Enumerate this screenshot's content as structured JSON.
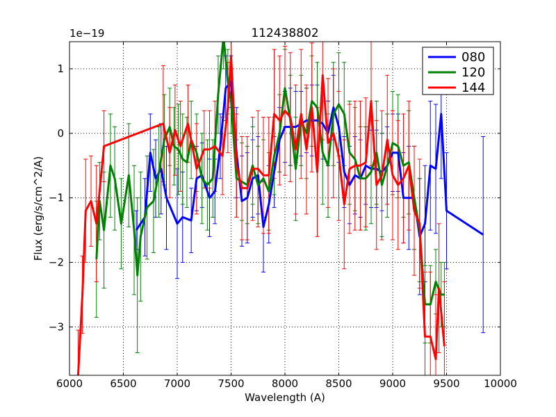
{
  "chart_data": {
    "type": "line",
    "title": "112438802",
    "xlabel": "Wavelength (A)",
    "ylabel": "Flux (erg/s/cm^2/A)",
    "y_offset_label": "1e−19",
    "xlim": [
      6000,
      10000
    ],
    "ylim": [
      -3.75,
      1.42
    ],
    "x_ticks": [
      6000,
      6500,
      7000,
      7500,
      8000,
      8500,
      9000,
      9500,
      10000
    ],
    "x_tick_labels": [
      "6000",
      "6500",
      "7000",
      "7500",
      "8000",
      "8500",
      "9000",
      "9500",
      "10000"
    ],
    "y_ticks": [
      -3,
      -2,
      -1,
      0,
      1
    ],
    "y_tick_labels": [
      "−3",
      "−2",
      "−1",
      "0",
      "1"
    ],
    "grid": true,
    "legend_position": "top-right",
    "error_bars": true,
    "series": [
      {
        "name": "080",
        "color": "#0000ff",
        "x": [
          6620,
          6700,
          6750,
          6800,
          6850,
          6900,
          7000,
          7050,
          7130,
          7180,
          7230,
          7300,
          7350,
          7400,
          7450,
          7500,
          7550,
          7600,
          7650,
          7700,
          7750,
          7800,
          7850,
          7900,
          7950,
          8000,
          8050,
          8100,
          8150,
          8200,
          8250,
          8300,
          8350,
          8400,
          8450,
          8500,
          8550,
          8600,
          8650,
          8700,
          8750,
          8800,
          8850,
          8900,
          8950,
          9000,
          9050,
          9100,
          9150,
          9200,
          9250,
          9300,
          9350,
          9400,
          9450,
          9500,
          9840
        ],
        "y": [
          -1.5,
          -1.3,
          -0.3,
          -0.7,
          -0.55,
          -1.0,
          -1.4,
          -1.3,
          -1.35,
          -0.7,
          -0.65,
          -1.0,
          -0.9,
          -0.2,
          0.7,
          0.8,
          -0.3,
          -1.05,
          -1.0,
          -0.7,
          -0.65,
          -1.45,
          -1.1,
          -0.6,
          -0.1,
          0.1,
          0.1,
          0.1,
          0.15,
          0.2,
          0.2,
          0.2,
          0.15,
          0.0,
          0.4,
          0.1,
          -0.6,
          -0.8,
          -0.65,
          -0.7,
          -0.5,
          -0.55,
          -0.55,
          -0.6,
          -0.5,
          -0.3,
          -0.3,
          -1.0,
          -1.0,
          -1.0,
          -1.6,
          -1.4,
          -0.5,
          -0.55,
          0.3,
          -1.2,
          -1.57
        ],
        "err": [
          0.3,
          0.6,
          0.6,
          0.6,
          0.7,
          0.8,
          0.85,
          0.7,
          0.5,
          0.5,
          0.5,
          0.6,
          0.5,
          0.5,
          0.5,
          0.4,
          0.7,
          0.7,
          0.7,
          0.6,
          0.6,
          0.7,
          0.6,
          0.55,
          0.5,
          0.55,
          0.6,
          0.55,
          0.5,
          0.5,
          0.55,
          0.55,
          0.55,
          0.5,
          0.5,
          0.55,
          0.55,
          0.6,
          0.6,
          0.6,
          0.6,
          0.6,
          0.6,
          0.6,
          0.6,
          0.6,
          0.6,
          0.7,
          0.8,
          0.8,
          0.9,
          0.9,
          1.0,
          1.0,
          1.0,
          0.9,
          1.52
        ]
      },
      {
        "name": "120",
        "color": "#008000",
        "x": [
          6250,
          6280,
          6320,
          6380,
          6420,
          6480,
          6550,
          6600,
          6630,
          6660,
          6720,
          6780,
          6830,
          6880,
          6930,
          6970,
          7010,
          7050,
          7090,
          7130,
          7180,
          7230,
          7280,
          7330,
          7380,
          7430,
          7470,
          7500,
          7550,
          7600,
          7650,
          7700,
          7750,
          7800,
          7850,
          7900,
          7950,
          8000,
          8050,
          8100,
          8150,
          8200,
          8250,
          8300,
          8350,
          8400,
          8450,
          8500,
          8550,
          8600,
          8650,
          8700,
          8750,
          8800,
          8850,
          8900,
          8950,
          9000,
          9050,
          9100,
          9150,
          9200,
          9250,
          9300,
          9350,
          9400,
          9450,
          9480
        ],
        "y": [
          -1.95,
          -1.05,
          -1.5,
          -0.5,
          -0.7,
          -1.4,
          -0.65,
          -1.5,
          -2.2,
          -1.6,
          -1.15,
          -1.05,
          -0.6,
          -0.1,
          0.1,
          -0.2,
          -0.25,
          -0.4,
          -0.45,
          -0.1,
          -0.3,
          -0.7,
          -0.8,
          -0.7,
          0.6,
          1.5,
          0.8,
          0.5,
          -0.7,
          -0.75,
          -0.8,
          -0.5,
          -0.8,
          -0.7,
          -0.9,
          -0.35,
          0.0,
          0.7,
          0.2,
          -0.55,
          0.2,
          0.0,
          0.5,
          0.4,
          -0.3,
          -0.5,
          0.3,
          0.45,
          0.3,
          -0.3,
          -0.4,
          -0.7,
          -0.7,
          -0.6,
          -0.3,
          -0.8,
          -0.5,
          -0.15,
          -0.2,
          -0.5,
          -0.45,
          -1.0,
          -1.5,
          -2.65,
          -2.65,
          -2.3,
          -2.5,
          -2.5
        ],
        "err": [
          0.9,
          0.6,
          0.9,
          0.8,
          0.8,
          0.7,
          0.8,
          1.0,
          1.2,
          1.0,
          0.8,
          0.8,
          0.7,
          0.7,
          0.6,
          0.6,
          0.7,
          0.7,
          0.7,
          0.6,
          0.6,
          0.7,
          0.7,
          0.6,
          0.6,
          0.5,
          0.5,
          0.5,
          0.6,
          0.6,
          0.6,
          0.6,
          0.6,
          0.6,
          0.6,
          0.6,
          0.6,
          0.6,
          0.7,
          0.8,
          0.7,
          0.7,
          0.7,
          0.7,
          0.8,
          0.8,
          0.8,
          0.8,
          0.8,
          0.8,
          0.8,
          0.8,
          0.8,
          0.8,
          0.8,
          0.8,
          0.8,
          0.8,
          0.8,
          0.8,
          0.8,
          0.8,
          0.8,
          0.6,
          0.6,
          0.5,
          0.5,
          0.5
        ]
      },
      {
        "name": "144",
        "color": "#ff0000",
        "x": [
          6080,
          6120,
          6150,
          6200,
          6250,
          6320,
          6870,
          6930,
          6980,
          7030,
          7100,
          7180,
          7250,
          7300,
          7350,
          7420,
          7470,
          7500,
          7550,
          7600,
          7650,
          7700,
          7750,
          7800,
          7850,
          7900,
          7950,
          8000,
          8050,
          8100,
          8150,
          8200,
          8250,
          8300,
          8350,
          8400,
          8450,
          8500,
          8550,
          8600,
          8650,
          8700,
          8750,
          8800,
          8850,
          8900,
          8950,
          9000,
          9050,
          9100,
          9150,
          9200,
          9250,
          9300,
          9350,
          9400,
          9430,
          9480
        ],
        "y": [
          -3.75,
          -2.5,
          -1.2,
          -1.05,
          -1.4,
          -0.2,
          0.15,
          -0.3,
          0.05,
          -0.2,
          0.15,
          -0.55,
          -0.25,
          -0.25,
          -0.2,
          -0.35,
          0.4,
          1.2,
          -0.5,
          -0.85,
          -0.85,
          -0.55,
          -0.55,
          -0.65,
          -0.65,
          0.3,
          0.2,
          0.35,
          0.25,
          -0.25,
          0.3,
          -0.25,
          0.4,
          -0.6,
          0.9,
          -0.15,
          0.0,
          -0.35,
          -1.1,
          -0.55,
          -0.5,
          -0.5,
          -0.45,
          0.5,
          -0.8,
          -0.65,
          -0.1,
          -0.65,
          -0.8,
          -0.7,
          -0.5,
          -1.2,
          -1.4,
          -3.15,
          -3.15,
          -3.5,
          -2.4,
          -3.3
        ],
        "err": [
          0.7,
          0.6,
          0.8,
          0.7,
          0.9,
          0.55,
          0.9,
          0.7,
          0.7,
          0.7,
          0.6,
          0.7,
          0.6,
          0.6,
          0.7,
          0.6,
          0.7,
          0.7,
          0.8,
          0.8,
          0.8,
          0.8,
          0.9,
          0.9,
          0.9,
          1.0,
          1.0,
          1.0,
          1.0,
          1.0,
          1.0,
          1.0,
          1.0,
          1.0,
          1.0,
          1.0,
          1.0,
          1.0,
          1.0,
          1.0,
          1.0,
          1.0,
          1.0,
          1.0,
          1.0,
          1.0,
          1.0,
          1.0,
          1.0,
          1.0,
          1.0,
          1.0,
          1.0,
          1.0,
          1.0,
          1.0,
          1.0,
          1.0
        ]
      }
    ]
  }
}
